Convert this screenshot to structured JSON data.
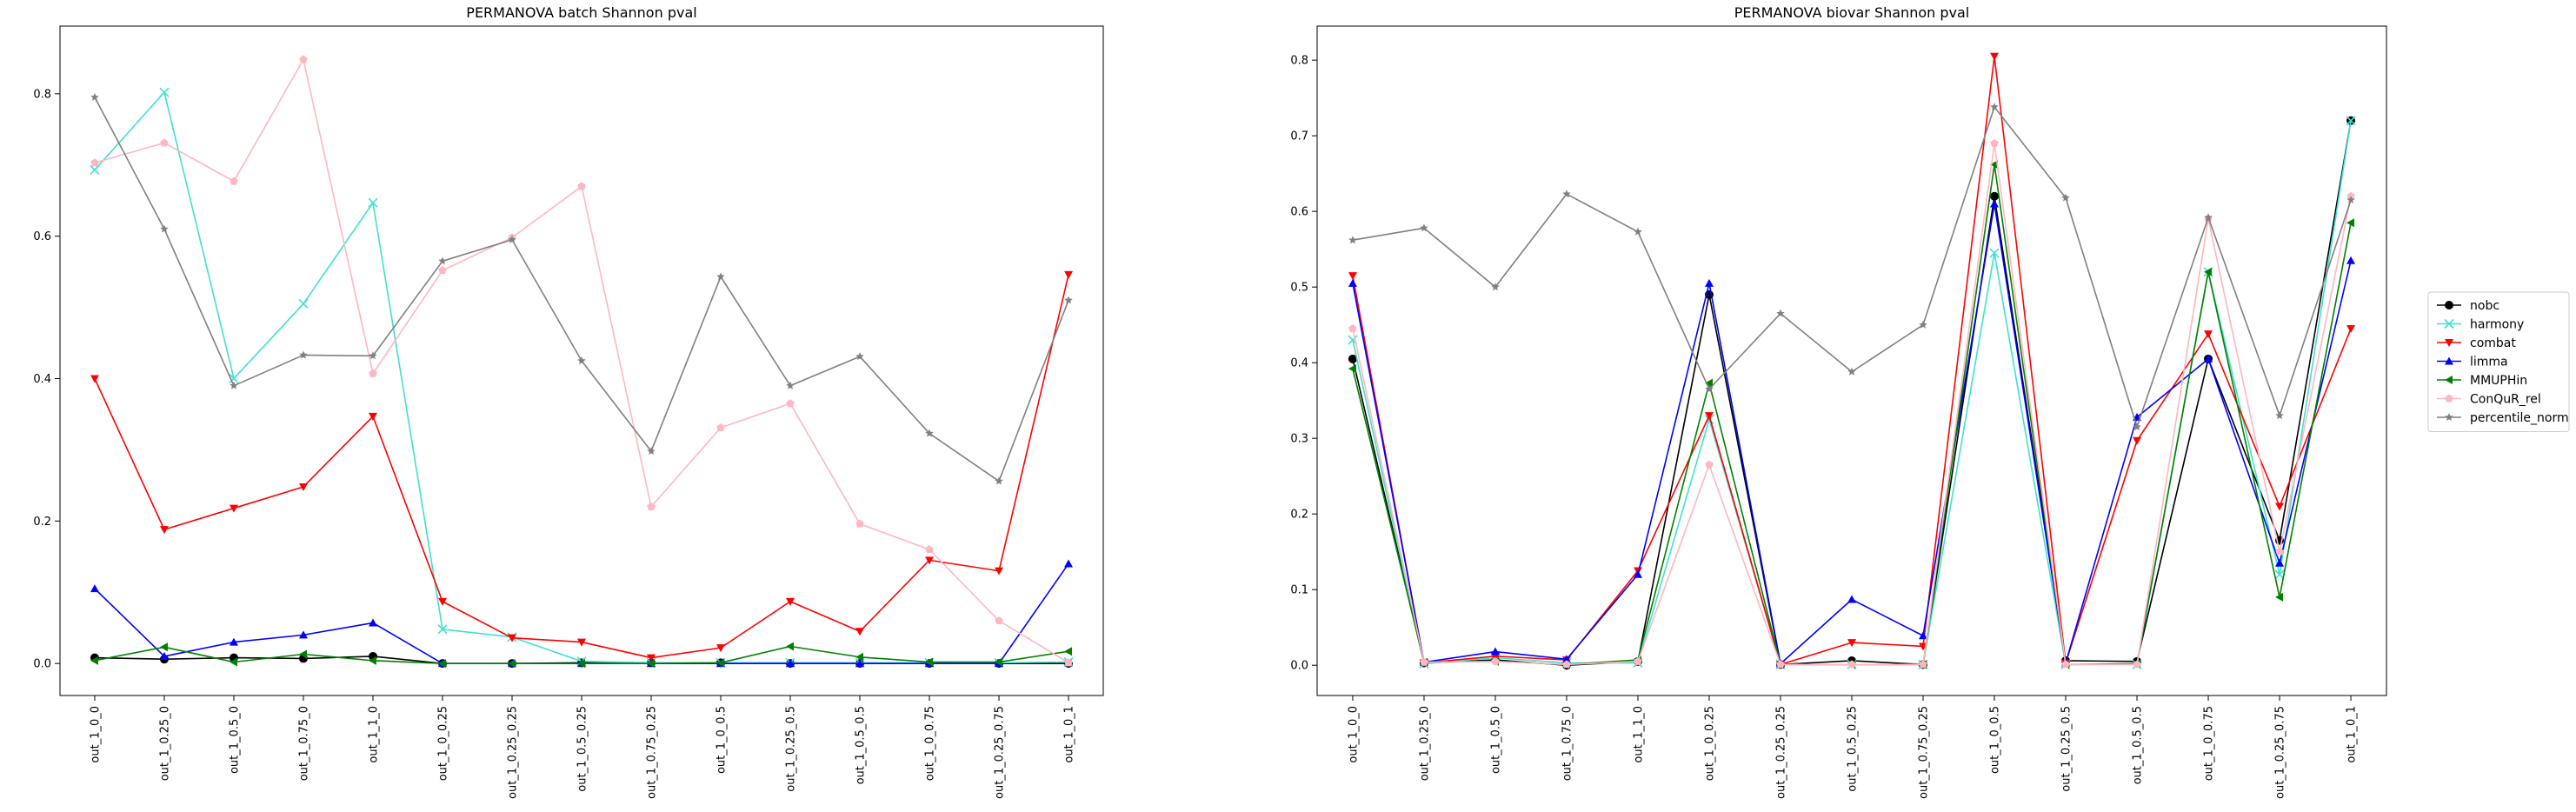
{
  "chart_data": [
    {
      "type": "line",
      "title": "PERMANOVA batch Shannon pval",
      "xlabel": "",
      "ylabel": "",
      "categories": [
        "out_1_0_0",
        "out_1_0.25_0",
        "out_1_0.5_0",
        "out_1_0.75_0",
        "out_1_1_0",
        "out_1_0_0.25",
        "out_1_0.25_0.25",
        "out_1_0.5_0.25",
        "out_1_0.75_0.25",
        "out_1_0_0.5",
        "out_1_0.25_0.5",
        "out_1_0.5_0.5",
        "out_1_0_0.75",
        "out_1_0.25_0.75",
        "out_1_0_1"
      ],
      "ylim": [
        -0.045,
        0.895
      ],
      "yticks": [
        "0.0",
        "0.2",
        "0.4",
        "0.6",
        "0.8"
      ],
      "legend": "none",
      "series": [
        {
          "name": "nobc",
          "color": "#000000",
          "marker": "circle",
          "values": [
            0.008,
            0.006,
            0.008,
            0.007,
            0.01,
            0.0,
            0.0,
            0.001,
            0.001,
            0.001,
            0.0,
            0.0,
            0.0,
            0.0,
            0.0
          ]
        },
        {
          "name": "harmony",
          "color": "#40e0d0",
          "marker": "x",
          "values": [
            0.693,
            0.802,
            0.4,
            0.505,
            0.647,
            0.048,
            0.037,
            0.003,
            0.001,
            0.001,
            0.001,
            0.001,
            0.001,
            0.001,
            0.002
          ]
        },
        {
          "name": "combat",
          "color": "#ff0000",
          "marker": "triangle-down",
          "values": [
            0.4,
            0.188,
            0.218,
            0.248,
            0.347,
            0.087,
            0.036,
            0.03,
            0.008,
            0.022,
            0.087,
            0.045,
            0.145,
            0.13,
            0.546
          ]
        },
        {
          "name": "limma",
          "color": "#0000ff",
          "marker": "triangle-up",
          "values": [
            0.105,
            0.01,
            0.03,
            0.04,
            0.057,
            0.0,
            0.0,
            0.0,
            0.0,
            0.0,
            0.0,
            0.0,
            0.0,
            0.0,
            0.14
          ]
        },
        {
          "name": "MMUPHin",
          "color": "#008000",
          "marker": "triangle-left",
          "values": [
            0.004,
            0.023,
            0.002,
            0.013,
            0.004,
            0.0,
            0.0,
            0.0,
            0.0,
            0.001,
            0.024,
            0.009,
            0.002,
            0.002,
            0.017
          ]
        },
        {
          "name": "ConQuR_rel",
          "color": "#ffb6c1",
          "marker": "pentagon",
          "values": [
            0.703,
            0.731,
            0.677,
            0.848,
            0.407,
            0.552,
            0.598,
            0.67,
            0.22,
            0.331,
            0.365,
            0.196,
            0.16,
            0.06,
            0.001
          ]
        },
        {
          "name": "percentile_norm",
          "color": "#808080",
          "marker": "star",
          "values": [
            0.795,
            0.61,
            0.39,
            0.433,
            0.432,
            0.565,
            0.595,
            0.425,
            0.298,
            0.543,
            0.39,
            0.431,
            0.323,
            0.256,
            0.51
          ]
        }
      ]
    },
    {
      "type": "line",
      "title": "PERMANOVA biovar Shannon pval",
      "xlabel": "",
      "ylabel": "",
      "categories": [
        "out_1_0_0",
        "out_1_0.25_0",
        "out_1_0.5_0",
        "out_1_0.75_0",
        "out_1_1_0",
        "out_1_0_0.25",
        "out_1_0.25_0.25",
        "out_1_0.5_0.25",
        "out_1_0.75_0.25",
        "out_1_0_0.5",
        "out_1_0.25_0.5",
        "out_1_0.5_0.5",
        "out_1_0_0.75",
        "out_1_0.25_0.75",
        "out_1_0_1"
      ],
      "ylim": [
        -0.04,
        0.845
      ],
      "yticks": [
        "0.0",
        "0.1",
        "0.2",
        "0.3",
        "0.4",
        "0.5",
        "0.6",
        "0.7",
        "0.8"
      ],
      "legend": "right",
      "series": [
        {
          "name": "nobc",
          "color": "#000000",
          "marker": "circle",
          "values": [
            0.405,
            0.003,
            0.007,
            0.0,
            0.005,
            0.49,
            0.001,
            0.006,
            0.001,
            0.62,
            0.006,
            0.005,
            0.405,
            0.165,
            0.72
          ]
        },
        {
          "name": "harmony",
          "color": "#40e0d0",
          "marker": "x",
          "values": [
            0.43,
            0.002,
            0.01,
            0.003,
            0.003,
            0.325,
            0.001,
            0.001,
            0.001,
            0.545,
            0.001,
            0.001,
            0.52,
            0.12,
            0.72
          ]
        },
        {
          "name": "combat",
          "color": "#ff0000",
          "marker": "triangle-down",
          "values": [
            0.515,
            0.003,
            0.012,
            0.007,
            0.125,
            0.33,
            0.001,
            0.03,
            0.025,
            0.805,
            0.003,
            0.297,
            0.438,
            0.21,
            0.445
          ]
        },
        {
          "name": "limma",
          "color": "#0000ff",
          "marker": "triangle-up",
          "values": [
            0.505,
            0.004,
            0.018,
            0.008,
            0.12,
            0.505,
            0.002,
            0.087,
            0.039,
            0.61,
            0.003,
            0.328,
            0.405,
            0.135,
            0.535
          ]
        },
        {
          "name": "MMUPHin",
          "color": "#008000",
          "marker": "triangle-left",
          "values": [
            0.392,
            0.004,
            0.005,
            0.001,
            0.007,
            0.373,
            0.001,
            0.001,
            0.001,
            0.662,
            0.001,
            0.002,
            0.52,
            0.09,
            0.585
          ]
        },
        {
          "name": "ConQuR_rel",
          "color": "#ffb6c1",
          "marker": "pentagon",
          "values": [
            0.445,
            0.004,
            0.005,
            0.001,
            0.005,
            0.265,
            0.001,
            0.001,
            0.001,
            0.69,
            0.001,
            0.001,
            0.59,
            0.15,
            0.62
          ]
        },
        {
          "name": "percentile_norm",
          "color": "#808080",
          "marker": "star",
          "values": [
            0.562,
            0.578,
            0.5,
            0.623,
            0.573,
            0.365,
            0.465,
            0.388,
            0.45,
            0.738,
            0.618,
            0.315,
            0.592,
            0.33,
            0.615
          ]
        }
      ]
    }
  ]
}
